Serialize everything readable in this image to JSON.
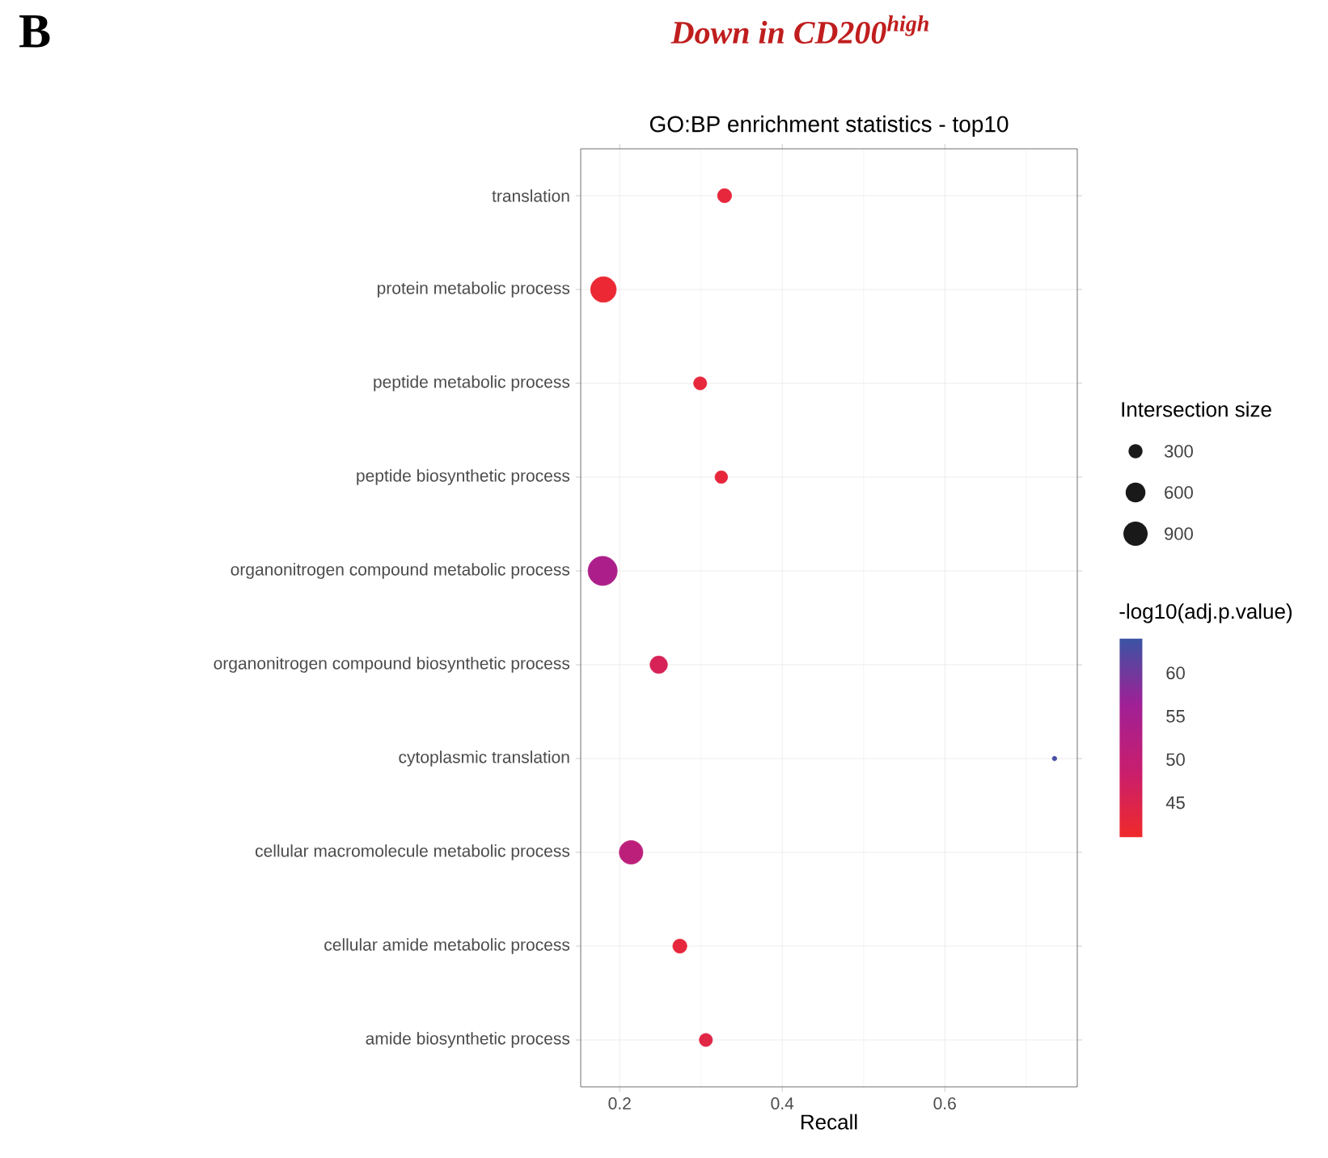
{
  "chart_data": {
    "type": "bubble",
    "title": "GO:BP enrichment statistics - top10",
    "xlabel": "Recall",
    "legend_title": "Intersection size",
    "clabel": "-log10(adj.p.value)",
    "annotations": [
      "B",
      "Down in CD200$^{high}$"
    ],
    "categories": [
      "translation",
      "protein metabolic process",
      "peptide metabolic process",
      "peptide biosynthetic process",
      "organonitrogen compound metabolic process",
      "organonitrogen compound biosynthetic process",
      "cytoplasmic translation",
      "cellular macromolecule metabolic process",
      "cellular amide metabolic process",
      "amide biosynthetic process"
    ],
    "values": [
      0.329,
      0.18,
      0.299,
      0.325,
      0.179,
      0.248,
      0.735,
      0.214,
      0.274,
      0.306
    ],
    "sizes": [
      300,
      1000,
      260,
      240,
      1300,
      460,
      30,
      850,
      300,
      260
    ],
    "cvalues": [
      43,
      42,
      43,
      43,
      54,
      46,
      63,
      51,
      43,
      44
    ],
    "size_legend": [
      300,
      600,
      900
    ],
    "orientation": "horizontal",
    "xlim": [
      0.152,
      0.763
    ],
    "xticks": [
      0.2,
      0.4,
      0.6
    ],
    "clim": [
      41,
      64
    ],
    "cticks": [
      45,
      50,
      55,
      60
    ],
    "grid": true,
    "marker": "circle"
  }
}
